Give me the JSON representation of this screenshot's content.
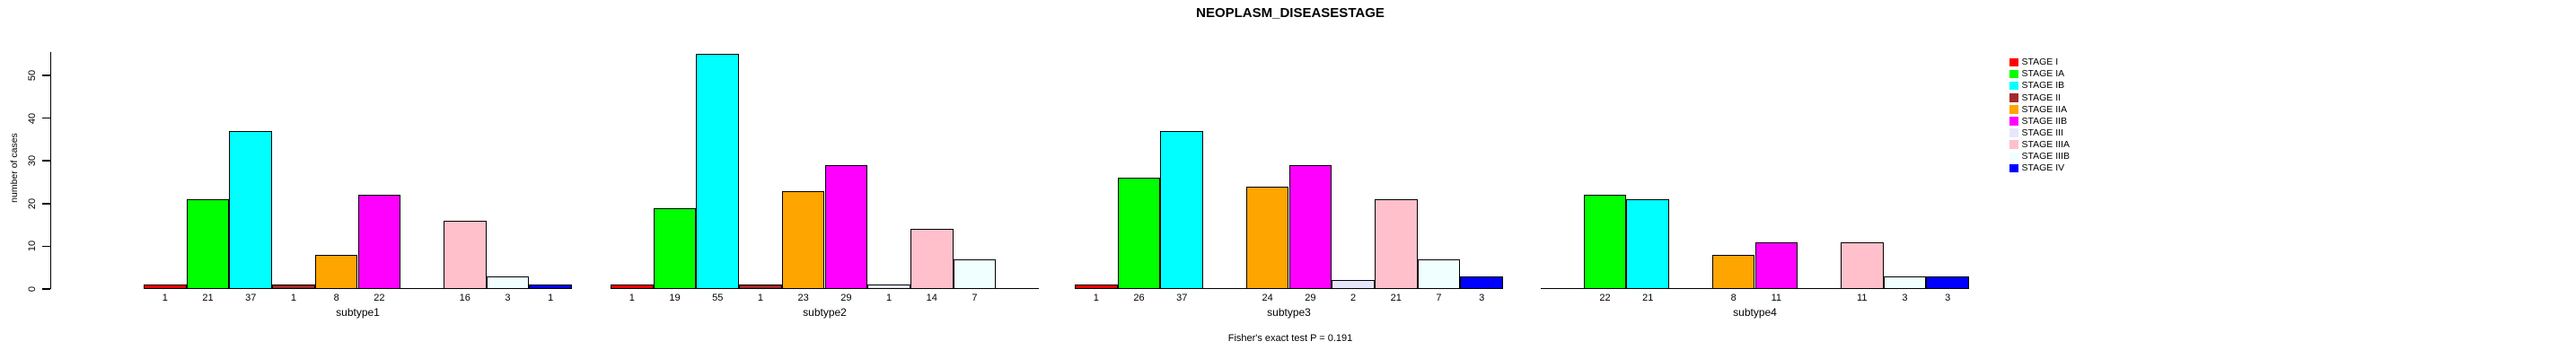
{
  "title": "NEOPLASM_DISEASESTAGE",
  "footer": "Fisher's exact test P = 0.191",
  "chart_data": {
    "type": "bar",
    "title": "NEOPLASM_DISEASESTAGE",
    "subtitle": "Fisher's exact test P = 0.191",
    "xlabel": "",
    "ylabel": "number of cases",
    "categories": [
      "subtype1",
      "subtype2",
      "subtype3",
      "subtype4"
    ],
    "series": [
      {
        "name": "STAGE I",
        "color": "#FF0000",
        "values": [
          1,
          1,
          1,
          0
        ]
      },
      {
        "name": "STAGE IA",
        "color": "#00FF00",
        "values": [
          21,
          19,
          26,
          22
        ]
      },
      {
        "name": "STAGE IB",
        "color": "#00FFFF",
        "values": [
          37,
          55,
          37,
          21
        ]
      },
      {
        "name": "STAGE II",
        "color": "#A52A2A",
        "values": [
          1,
          1,
          0,
          0
        ]
      },
      {
        "name": "STAGE IIA",
        "color": "#FFA500",
        "values": [
          8,
          23,
          24,
          8
        ]
      },
      {
        "name": "STAGE IIB",
        "color": "#FF00FF",
        "values": [
          22,
          29,
          29,
          11
        ]
      },
      {
        "name": "STAGE III",
        "color": "#E6E6FA",
        "values": [
          0,
          1,
          2,
          0
        ]
      },
      {
        "name": "STAGE IIIA",
        "color": "#FFC0CB",
        "values": [
          16,
          14,
          21,
          11
        ]
      },
      {
        "name": "STAGE IIIB",
        "color": "#F0FFFF",
        "values": [
          3,
          7,
          7,
          3
        ]
      },
      {
        "name": "STAGE IV",
        "color": "#0000FF",
        "values": [
          1,
          0,
          3,
          3
        ]
      }
    ],
    "ylim": [
      0,
      55
    ],
    "yticks": [
      0,
      10,
      20,
      30,
      40,
      50
    ],
    "bar_value_labels": "shown under each bar; zero-value bars have no label",
    "legend_position": "right",
    "grid": false
  }
}
